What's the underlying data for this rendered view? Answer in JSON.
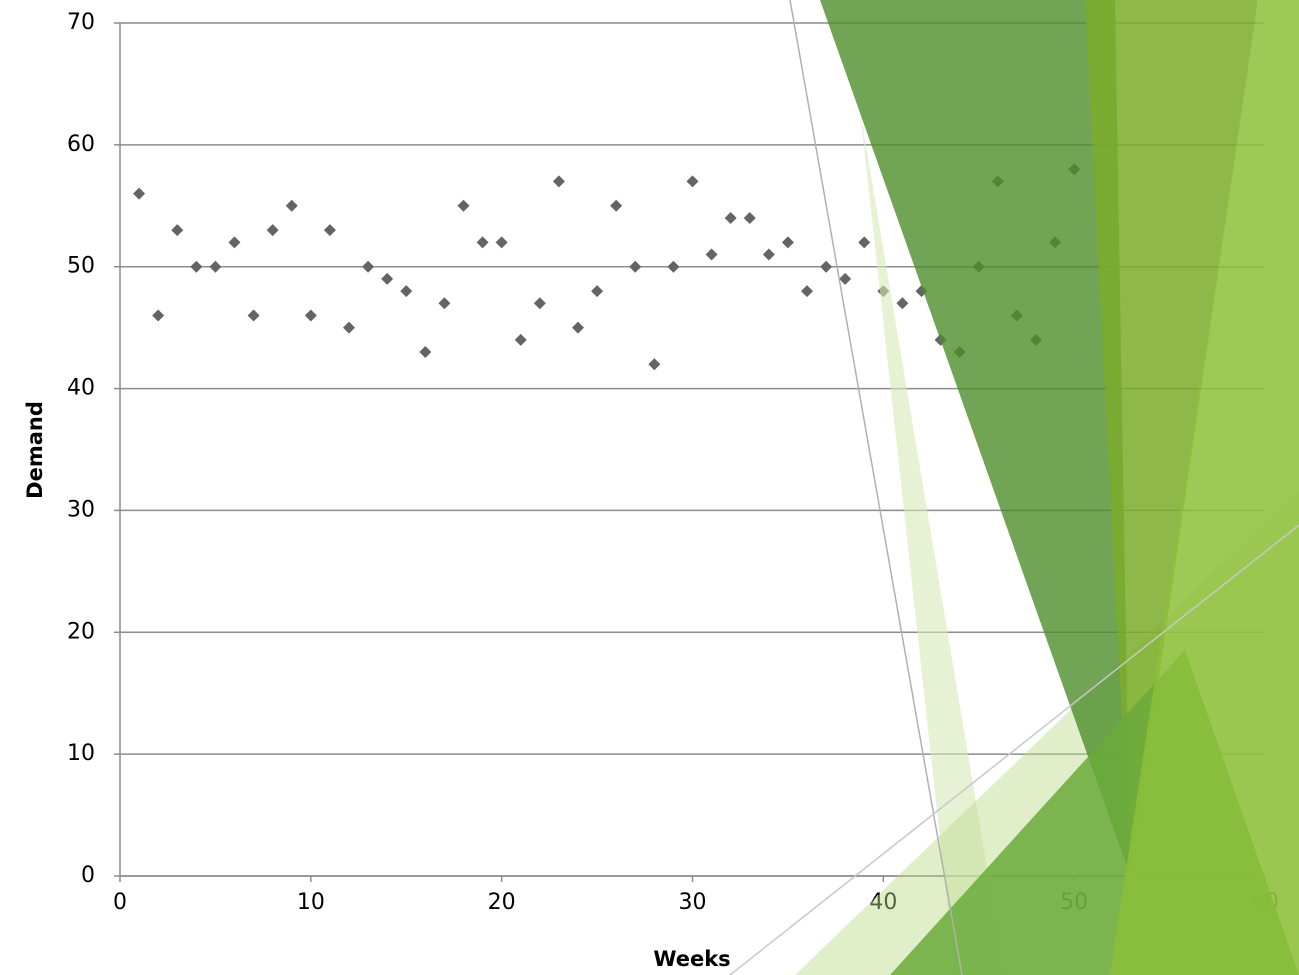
{
  "chart_data": {
    "type": "scatter",
    "x_label": "Weeks",
    "y_label": "Demand",
    "x": [
      1,
      2,
      3,
      4,
      5,
      6,
      7,
      8,
      9,
      10,
      11,
      12,
      13,
      14,
      15,
      16,
      17,
      18,
      19,
      20,
      21,
      22,
      23,
      24,
      25,
      26,
      27,
      28,
      29,
      30,
      31,
      32,
      33,
      34,
      35,
      36,
      37,
      38,
      39,
      40,
      41,
      42,
      43,
      44,
      45,
      46,
      47,
      48,
      49,
      50
    ],
    "values": [
      56,
      46,
      53,
      50,
      50,
      52,
      46,
      53,
      55,
      46,
      53,
      45,
      50,
      49,
      48,
      43,
      47,
      55,
      52,
      52,
      44,
      47,
      57,
      45,
      48,
      55,
      50,
      42,
      50,
      57,
      51,
      54,
      54,
      51,
      52,
      48,
      50,
      49,
      52,
      48,
      47,
      48,
      44,
      43,
      50,
      57,
      46,
      44,
      52,
      58
    ],
    "color": "#646464",
    "xlim": [
      0,
      60
    ],
    "xticks": [
      0,
      10,
      20,
      30,
      40,
      50,
      60
    ],
    "ylim": [
      0,
      70
    ],
    "yticks": [
      0,
      10,
      20,
      30,
      40,
      50,
      60,
      70
    ],
    "grid": true
  }
}
